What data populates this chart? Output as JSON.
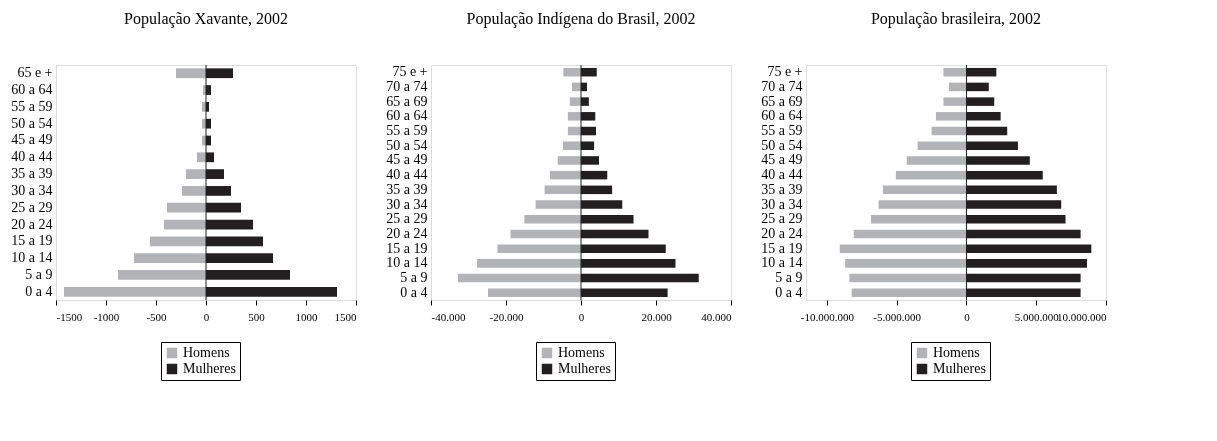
{
  "chart_data": [
    {
      "type": "bar",
      "title": "População Xavante, 2002",
      "orientation": "horizontal",
      "stacked": true,
      "grid": false,
      "legend": "bottom",
      "categories": [
        "65 e +",
        "60 a 64",
        "55 a 59",
        "50 a 54",
        "45 a 49",
        "40 a 44",
        "35 a 39",
        "30 a 34",
        "25 a 29",
        "20 a 24",
        "15 a 19",
        "10 a 14",
        "5 a 9",
        "0 a 4"
      ],
      "series": [
        {
          "name": "Homens",
          "color": "#b1b3b6",
          "values": [
            -300,
            -30,
            -40,
            -40,
            -40,
            -90,
            -200,
            -240,
            -390,
            -420,
            -560,
            -720,
            -880,
            -1420
          ]
        },
        {
          "name": "Mulheres",
          "color": "#231f20",
          "values": [
            270,
            50,
            30,
            50,
            50,
            80,
            180,
            250,
            350,
            470,
            570,
            670,
            840,
            1310
          ]
        }
      ],
      "xlim": [
        -1500,
        1500
      ],
      "xticks": [
        -1500,
        -1000,
        -500,
        0,
        500,
        1000,
        1500
      ],
      "ref_lines": [
        {
          "axis": "x",
          "value": 0,
          "color": "#231f20"
        }
      ]
    },
    {
      "type": "bar",
      "title": "População Indígena do Brasil, 2002",
      "orientation": "horizontal",
      "stacked": true,
      "grid": false,
      "legend": "bottom",
      "categories": [
        "75 e +",
        "70 a 74",
        "65 a 69",
        "60 a 64",
        "55 a 59",
        "50 a 54",
        "45 a 49",
        "40 a 44",
        "35 a 39",
        "30 a 34",
        "25 a 29",
        "20 a 24",
        "15 a 19",
        "10 a 14",
        "5 a 9",
        "0 a 4"
      ],
      "series": [
        {
          "name": "Homens",
          "color": "#b1b3b6",
          "values": [
            -4700,
            -2400,
            -3000,
            -3500,
            -3500,
            -4800,
            -6200,
            -8300,
            -9700,
            -12100,
            -15100,
            -18800,
            -22300,
            -27700,
            -32800,
            -24800
          ]
        },
        {
          "name": "Mulheres",
          "color": "#231f20",
          "values": [
            4200,
            1600,
            2100,
            3800,
            4000,
            3500,
            4800,
            7000,
            8300,
            11000,
            14000,
            18000,
            22600,
            25200,
            31400,
            23100
          ]
        }
      ],
      "xlim": [
        -40000,
        40000
      ],
      "xticks": [
        {
          "value": -40000,
          "label": "-40.000"
        },
        {
          "value": -20000,
          "label": "-20.000"
        },
        0,
        {
          "value": 20000,
          "label": "20.000"
        },
        {
          "value": 40000,
          "label": "40.000"
        }
      ],
      "ref_lines": [
        {
          "axis": "x",
          "value": 0,
          "color": "#231f20"
        }
      ]
    },
    {
      "type": "bar",
      "title": "População brasileira, 2002",
      "orientation": "horizontal",
      "stacked": true,
      "grid": false,
      "legend": "bottom",
      "categories": [
        "75 e +",
        "70 a 74",
        "65 a 69",
        "60 a 64",
        "55 a 59",
        "50 a 54",
        "45 a 49",
        "40 a 44",
        "35 a 39",
        "30 a 34",
        "25 a 29",
        "20 a 24",
        "15 a 19",
        "10 a 14",
        "5 a 9",
        "0 a 4"
      ],
      "series": [
        {
          "name": "Homens",
          "color": "#b1b3b6",
          "values": [
            -1650000,
            -1260000,
            -1650000,
            -2190000,
            -2500000,
            -3500000,
            -4280000,
            -5060000,
            -5990000,
            -6300000,
            -6840000,
            -8080000,
            -9080000,
            -8690000,
            -8390000,
            -8230000
          ]
        },
        {
          "name": "Mulheres",
          "color": "#231f20",
          "values": [
            2140000,
            1600000,
            1990000,
            2450000,
            2920000,
            3690000,
            4540000,
            5470000,
            6480000,
            6790000,
            7100000,
            8180000,
            8950000,
            8640000,
            8180000,
            8180000
          ]
        }
      ],
      "xlim": [
        -11500000,
        10000000
      ],
      "xticks": [
        {
          "value": -10000000,
          "label": "-10.000.000"
        },
        {
          "value": -5000000,
          "label": "-5.000.000"
        },
        0,
        {
          "value": 5000000,
          "label": "5.000.000"
        },
        {
          "value": 10000000,
          "label": "10.000.000"
        }
      ],
      "ref_lines": [
        {
          "axis": "x",
          "value": 0,
          "color": "#231f20"
        }
      ]
    }
  ]
}
